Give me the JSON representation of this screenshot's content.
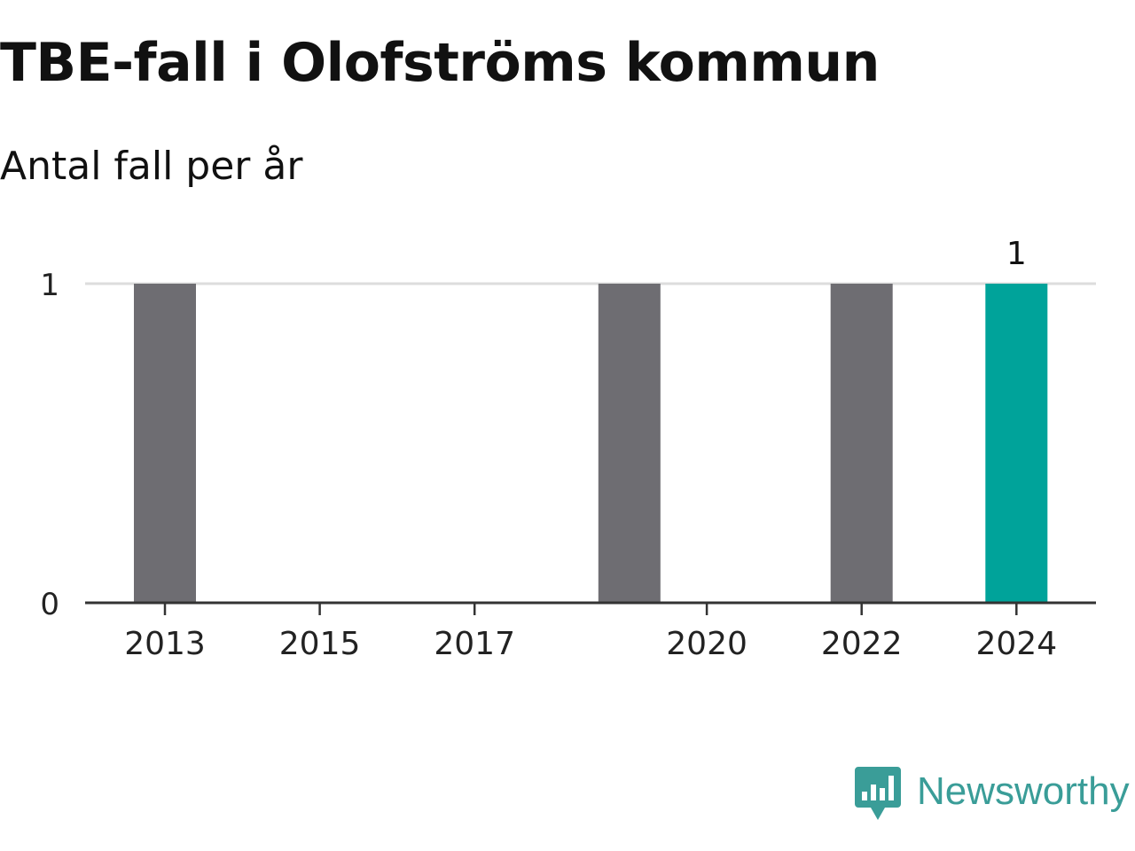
{
  "chart_data": {
    "type": "bar",
    "title": "TBE-fall i Olofströms kommun",
    "subtitle": "Antal fall per år",
    "categories": [
      2013,
      2014,
      2015,
      2016,
      2017,
      2018,
      2019,
      2020,
      2021,
      2022,
      2023,
      2024
    ],
    "values": [
      1,
      0,
      0,
      0,
      0,
      0,
      1,
      0,
      0,
      1,
      0,
      1
    ],
    "x_tick_labels": [
      "2013",
      "2015",
      "2017",
      "2020",
      "2022",
      "2024"
    ],
    "y_ticks": [
      0,
      1
    ],
    "ylim": [
      0,
      1
    ],
    "data_labels": [
      {
        "category": 2024,
        "text": "1"
      }
    ],
    "highlight_category": 2024,
    "colors": {
      "bar": "#6e6d72",
      "highlight": "#00a39a",
      "grid": "#dddddd",
      "axis": "#333333",
      "text": "#222222"
    },
    "grid": true
  },
  "brand": {
    "name": "Newsworthy",
    "icon": "newsworthy-logo-icon",
    "color": "#3a9d98"
  }
}
